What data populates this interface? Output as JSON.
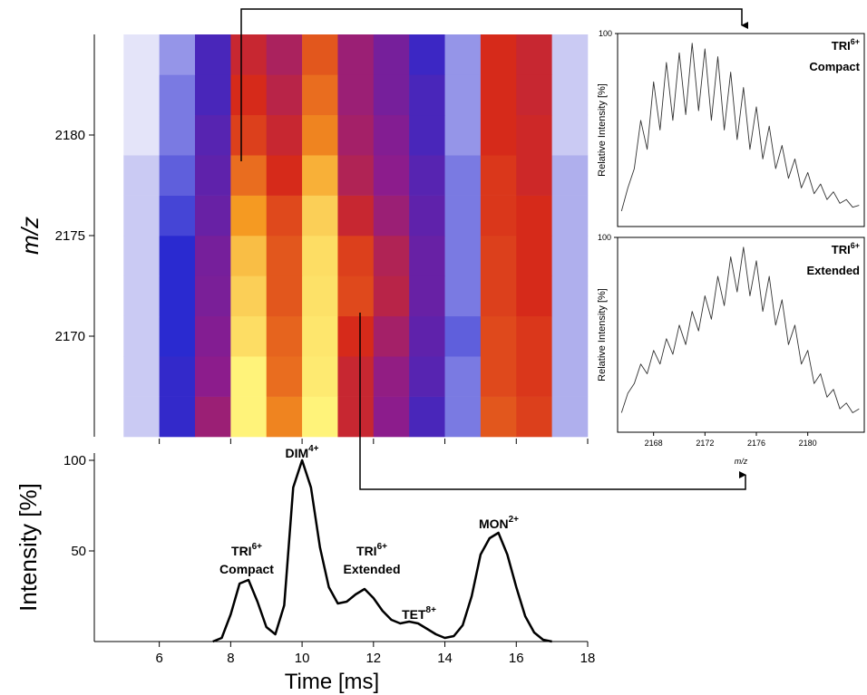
{
  "chart_data": [
    {
      "type": "heatmap",
      "ylabel": "m/z",
      "xlim": [
        4.18,
        18
      ],
      "ylim": [
        2165,
        2185
      ],
      "yticks": [
        2170,
        2175,
        2180
      ],
      "xbins": [
        5,
        6,
        7,
        8,
        9,
        10,
        11,
        12,
        13,
        14,
        15,
        16,
        17,
        18
      ],
      "ybins": [
        2165,
        2167,
        2169,
        2171,
        2173,
        2175,
        2177,
        2179,
        2181,
        2183,
        2185
      ],
      "z": [
        [
          2,
          10,
          35,
          100,
          75,
          100,
          50,
          30,
          15,
          5,
          65,
          60,
          3
        ],
        [
          2,
          10,
          30,
          100,
          70,
          98,
          50,
          32,
          18,
          5,
          62,
          58,
          3
        ],
        [
          2,
          8,
          28,
          95,
          68,
          97,
          55,
          38,
          20,
          6,
          62,
          58,
          3
        ],
        [
          2,
          8,
          26,
          92,
          65,
          96,
          62,
          45,
          22,
          5,
          60,
          55,
          3
        ],
        [
          2,
          8,
          25,
          88,
          65,
          95,
          60,
          42,
          22,
          5,
          60,
          55,
          3
        ],
        [
          2,
          7,
          22,
          80,
          62,
          92,
          50,
          35,
          20,
          5,
          58,
          55,
          3
        ],
        [
          2,
          6,
          20,
          70,
          55,
          85,
          42,
          30,
          18,
          5,
          58,
          52,
          3
        ],
        [
          1,
          5,
          18,
          60,
          50,
          75,
          38,
          28,
          15,
          4,
          55,
          52,
          2
        ],
        [
          1,
          5,
          15,
          55,
          45,
          70,
          35,
          25,
          15,
          4,
          55,
          50,
          2
        ],
        [
          1,
          4,
          15,
          50,
          40,
          65,
          35,
          25,
          12,
          4,
          55,
          50,
          2
        ]
      ],
      "colorscale": [
        [
          0,
          "#ffffff"
        ],
        [
          8,
          "#2a2ad0"
        ],
        [
          30,
          "#8c1c8c"
        ],
        [
          55,
          "#d62a1a"
        ],
        [
          80,
          "#f59a22"
        ],
        [
          100,
          "#fff37a"
        ]
      ]
    },
    {
      "type": "line",
      "xlabel": "Time [ms]",
      "ylabel": "Intensity [%]",
      "xlim": [
        4.18,
        18
      ],
      "ylim": [
        0,
        104
      ],
      "xticks": [
        6,
        8,
        10,
        12,
        14,
        16,
        18
      ],
      "yticks": [
        50,
        100
      ],
      "color": "#000000",
      "x": [
        7.5,
        7.75,
        8.0,
        8.25,
        8.5,
        8.75,
        9.0,
        9.25,
        9.5,
        9.75,
        10.0,
        10.25,
        10.5,
        10.75,
        11.0,
        11.25,
        11.5,
        11.75,
        12.0,
        12.25,
        12.5,
        12.75,
        13.0,
        13.25,
        13.5,
        13.75,
        14.0,
        14.25,
        14.5,
        14.75,
        15.0,
        15.25,
        15.5,
        15.75,
        16.0,
        16.25,
        16.5,
        16.75,
        17.0
      ],
      "values": [
        0,
        2,
        15,
        32,
        34,
        22,
        8,
        4,
        20,
        85,
        100,
        85,
        52,
        30,
        21,
        22,
        26,
        29,
        24,
        17,
        12,
        10,
        11,
        10,
        7,
        4,
        2,
        3,
        9,
        25,
        48,
        57,
        60,
        48,
        30,
        14,
        5,
        1,
        0
      ],
      "annotations": [
        {
          "text": "DIM",
          "sup": "4+"
        },
        {
          "text": "TRI",
          "sup": "6+",
          "line2": "Compact"
        },
        {
          "text": "TRI",
          "sup": "6+",
          "line2": "Extended"
        },
        {
          "text": "TET",
          "sup": "8+"
        },
        {
          "text": "MON",
          "sup": "2+"
        }
      ]
    },
    {
      "type": "line",
      "title": "TRI",
      "title_sup": "6+",
      "subtitle": "Compact",
      "ylabel": "Relative Intensity [%]",
      "xlim": [
        2165.2,
        2184.4
      ],
      "ylim": [
        0,
        100
      ],
      "yticks": [
        100
      ],
      "color": "#333333",
      "x": [
        2165.5,
        2166,
        2166.5,
        2167,
        2167.5,
        2168,
        2168.5,
        2169,
        2169.5,
        2170,
        2170.5,
        2171,
        2171.5,
        2172,
        2172.5,
        2173,
        2173.5,
        2174,
        2174.5,
        2175,
        2175.5,
        2176,
        2176.5,
        2177,
        2177.5,
        2178,
        2178.5,
        2179,
        2179.5,
        2180,
        2180.5,
        2181,
        2181.5,
        2182,
        2182.5,
        2183,
        2183.5,
        2184
      ],
      "values": [
        8,
        20,
        30,
        55,
        40,
        75,
        50,
        85,
        55,
        90,
        58,
        95,
        60,
        92,
        55,
        88,
        50,
        80,
        45,
        72,
        40,
        62,
        35,
        52,
        30,
        42,
        25,
        35,
        20,
        28,
        17,
        22,
        14,
        18,
        12,
        14,
        10,
        11
      ]
    },
    {
      "type": "line",
      "title": "TRI",
      "title_sup": "6+",
      "subtitle": "Extended",
      "ylabel": "Relative Intensity [%]",
      "xlabel": "m/z",
      "xlim": [
        2165.2,
        2184.4
      ],
      "ylim": [
        0,
        100
      ],
      "yticks": [
        100
      ],
      "xticks": [
        2168,
        2172,
        2176,
        2180
      ],
      "color": "#333333",
      "x": [
        2165.5,
        2166,
        2166.5,
        2167,
        2167.5,
        2168,
        2168.5,
        2169,
        2169.5,
        2170,
        2170.5,
        2171,
        2171.5,
        2172,
        2172.5,
        2173,
        2173.5,
        2174,
        2174.5,
        2175,
        2175.5,
        2176,
        2176.5,
        2177,
        2177.5,
        2178,
        2178.5,
        2179,
        2179.5,
        2180,
        2180.5,
        2181,
        2181.5,
        2182,
        2182.5,
        2183,
        2183.5,
        2184
      ],
      "values": [
        10,
        20,
        25,
        35,
        30,
        42,
        35,
        48,
        40,
        55,
        45,
        62,
        52,
        70,
        58,
        80,
        65,
        90,
        72,
        95,
        70,
        88,
        62,
        80,
        55,
        68,
        45,
        55,
        35,
        42,
        25,
        30,
        18,
        22,
        12,
        15,
        10,
        12
      ]
    }
  ]
}
